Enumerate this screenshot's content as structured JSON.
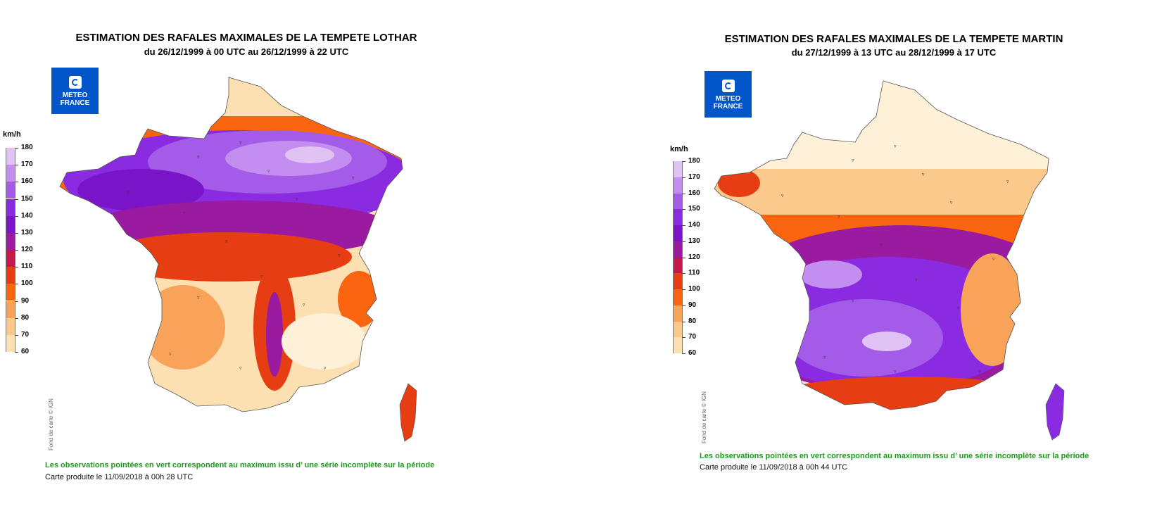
{
  "legend": {
    "unit": "km/h",
    "levels": [
      "180",
      "170",
      "160",
      "150",
      "140",
      "130",
      "120",
      "110",
      "100",
      "90",
      "80",
      "70",
      "60"
    ],
    "colors": [
      "#e0c2f5",
      "#c38ef0",
      "#a35be8",
      "#8a2be2",
      "#7a14c8",
      "#9a1aa0",
      "#c2184a",
      "#e63e12",
      "#f8650e",
      "#f9a35a",
      "#fbc98c",
      "#fde0b2",
      "#fff1d8"
    ]
  },
  "colors": {
    "logo_blue": "#0055c8",
    "obs_green": "#1a9e1a",
    "low_gust": "#fff0d2",
    "mid_gust": "#f8650e",
    "high_gust": "#8a2be2",
    "extreme_gust": "#e8d4f7"
  },
  "left_panel": {
    "title": "ESTIMATION DES RAFALES MAXIMALES DE LA TEMPETE LOTHAR",
    "subtitle": "du 26/12/1999 à 00 UTC au 26/12/1999 à 22 UTC",
    "logo_line1": "METEO",
    "logo_line2": "FRANCE",
    "credit": "Fond de carte © IGN",
    "obs_note": "Les observations pointées en vert correspondent au maximum issu d’ une série incomplète sur la période",
    "produced": "Carte produite le 11/09/2018 à 00h 28 UTC"
  },
  "right_panel": {
    "title": "ESTIMATION DES RAFALES MAXIMALES DE LA TEMPETE MARTIN",
    "subtitle": "du 27/12/1999 à 13 UTC au 28/12/1999 à 17 UTC",
    "logo_line1": "METEO",
    "logo_line2": "FRANCE",
    "credit": "Fond de carte © IGN",
    "obs_note": "Les observations pointées en vert correspondent au maximum issu d’ une série incomplète sur la période",
    "produced": "Carte produite le 11/09/2018 à 00h 44 UTC"
  }
}
